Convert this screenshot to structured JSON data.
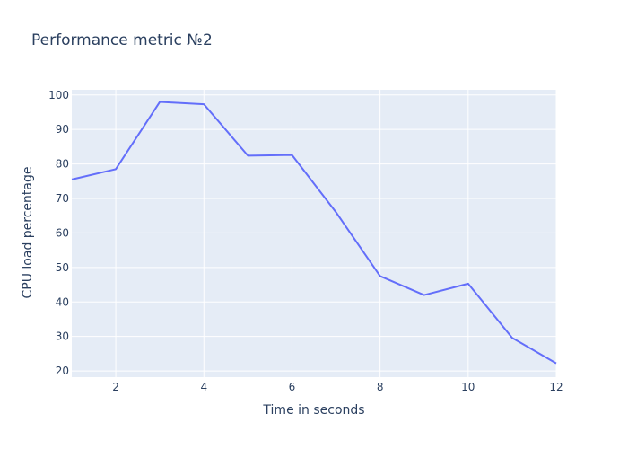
{
  "chart_data": {
    "type": "line",
    "title": "Performance metric №2",
    "xlabel": "Time in seconds",
    "ylabel": "CPU load percentage",
    "x": [
      1,
      2,
      3,
      4,
      5,
      6,
      7,
      8,
      9,
      10,
      11,
      12
    ],
    "series": [
      {
        "values": [
          75.5,
          78.5,
          98,
          97.3,
          82.4,
          82.6,
          66,
          47.5,
          42,
          45.3,
          29.6,
          22.2
        ]
      }
    ],
    "xlim": [
      1,
      12
    ],
    "ylim": [
      18.2,
      101.5
    ],
    "x_ticks": [
      2,
      4,
      6,
      8,
      10,
      12
    ],
    "y_ticks": [
      20,
      30,
      40,
      50,
      60,
      70,
      80,
      90,
      100
    ],
    "grid": true,
    "legend": "none",
    "colors": {
      "plot_background": "#e5ecf6",
      "line": "#636efa",
      "text": "#2a3f5f",
      "grid": "#ffffff"
    }
  }
}
